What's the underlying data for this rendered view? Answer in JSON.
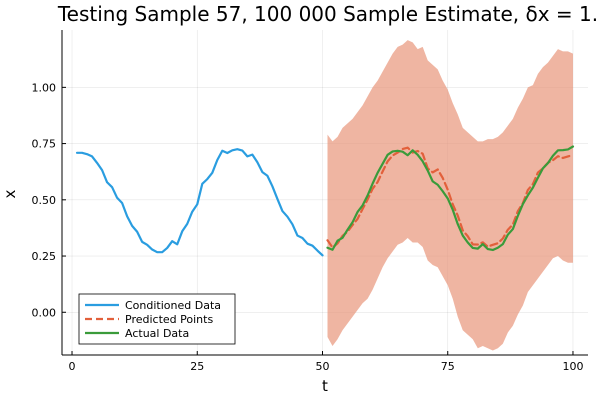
{
  "chart_data": {
    "type": "line",
    "title": "Testing Sample 57, 100 000 Sample Estimate, δx = 1.",
    "xlabel": "t",
    "ylabel": "x",
    "xlim": [
      -2,
      103
    ],
    "ylim": [
      -0.19,
      1.255
    ],
    "xticks": [
      0,
      25,
      50,
      75,
      100
    ],
    "yticks": [
      0.0,
      0.25,
      0.5,
      0.75,
      1.0
    ],
    "xtick_labels": [
      "0",
      "25",
      "50",
      "75",
      "100"
    ],
    "ytick_labels": [
      "0.00",
      "0.25",
      "0.50",
      "0.75",
      "1.00"
    ],
    "grid": true,
    "legend_position": "bottom-left",
    "series": [
      {
        "name": "Conditioned Data",
        "color": "#2a9de0",
        "style": "solid",
        "x": [
          1,
          2,
          3,
          4,
          5,
          6,
          7,
          8,
          9,
          10,
          11,
          12,
          13,
          14,
          15,
          16,
          17,
          18,
          19,
          20,
          21,
          22,
          23,
          24,
          25,
          26,
          27,
          28,
          29,
          30,
          31,
          32,
          33,
          34,
          35,
          36,
          37,
          38,
          39,
          40,
          41,
          42,
          43,
          44,
          45,
          46,
          47,
          48,
          49,
          50
        ],
        "y": [
          0.709,
          0.709,
          0.703,
          0.693,
          0.664,
          0.632,
          0.578,
          0.556,
          0.509,
          0.486,
          0.427,
          0.384,
          0.358,
          0.313,
          0.3,
          0.279,
          0.267,
          0.267,
          0.286,
          0.316,
          0.302,
          0.36,
          0.393,
          0.447,
          0.48,
          0.571,
          0.592,
          0.62,
          0.677,
          0.718,
          0.708,
          0.72,
          0.725,
          0.719,
          0.693,
          0.701,
          0.667,
          0.623,
          0.607,
          0.56,
          0.504,
          0.45,
          0.425,
          0.391,
          0.341,
          0.33,
          0.305,
          0.296,
          0.274,
          0.253
        ]
      },
      {
        "name": "Predicted Points",
        "color": "#e2603b",
        "style": "dashed",
        "x": [
          51,
          52,
          53,
          54,
          55,
          56,
          57,
          58,
          59,
          60,
          61,
          62,
          63,
          64,
          65,
          66,
          67,
          68,
          69,
          70,
          71,
          72,
          73,
          74,
          75,
          76,
          77,
          78,
          79,
          80,
          81,
          82,
          83,
          84,
          85,
          86,
          87,
          88,
          89,
          90,
          91,
          92,
          93,
          94,
          95,
          96,
          97,
          98,
          99,
          100
        ],
        "y": [
          0.32,
          0.288,
          0.306,
          0.34,
          0.358,
          0.388,
          0.415,
          0.459,
          0.501,
          0.549,
          0.579,
          0.626,
          0.671,
          0.697,
          0.71,
          0.726,
          0.732,
          0.71,
          0.717,
          0.705,
          0.64,
          0.622,
          0.635,
          0.597,
          0.545,
          0.48,
          0.43,
          0.364,
          0.338,
          0.302,
          0.301,
          0.311,
          0.292,
          0.3,
          0.307,
          0.328,
          0.367,
          0.39,
          0.45,
          0.485,
          0.544,
          0.57,
          0.621,
          0.64,
          0.665,
          0.676,
          0.694,
          0.686,
          0.693,
          0.699
        ]
      },
      {
        "name": "Actual Data",
        "color": "#3a9b3a",
        "style": "solid",
        "x": [
          51,
          52,
          53,
          54,
          55,
          56,
          57,
          58,
          59,
          60,
          61,
          62,
          63,
          64,
          65,
          66,
          67,
          68,
          69,
          70,
          71,
          72,
          73,
          74,
          75,
          76,
          77,
          78,
          79,
          80,
          81,
          82,
          83,
          84,
          85,
          86,
          87,
          88,
          89,
          90,
          91,
          92,
          93,
          94,
          95,
          96,
          97,
          98,
          99,
          100
        ],
        "y": [
          0.287,
          0.278,
          0.318,
          0.331,
          0.367,
          0.4,
          0.446,
          0.475,
          0.519,
          0.572,
          0.62,
          0.66,
          0.7,
          0.715,
          0.718,
          0.714,
          0.698,
          0.72,
          0.7,
          0.671,
          0.63,
          0.582,
          0.567,
          0.538,
          0.506,
          0.456,
          0.392,
          0.341,
          0.31,
          0.286,
          0.283,
          0.303,
          0.281,
          0.277,
          0.287,
          0.303,
          0.345,
          0.37,
          0.429,
          0.481,
          0.52,
          0.554,
          0.598,
          0.64,
          0.663,
          0.696,
          0.72,
          0.721,
          0.724,
          0.737
        ]
      }
    ],
    "band": {
      "color": "#e8967a",
      "x": [
        51,
        52,
        53,
        54,
        55,
        56,
        57,
        58,
        59,
        60,
        61,
        62,
        63,
        64,
        65,
        66,
        67,
        68,
        69,
        70,
        71,
        72,
        73,
        74,
        75,
        76,
        77,
        78,
        79,
        80,
        81,
        82,
        83,
        84,
        85,
        86,
        87,
        88,
        89,
        90,
        91,
        92,
        93,
        94,
        95,
        96,
        97,
        98,
        99,
        100
      ],
      "upper": [
        0.79,
        0.76,
        0.78,
        0.82,
        0.84,
        0.86,
        0.89,
        0.92,
        0.96,
        1.0,
        1.03,
        1.07,
        1.11,
        1.15,
        1.18,
        1.19,
        1.21,
        1.2,
        1.17,
        1.18,
        1.12,
        1.1,
        1.08,
        1.03,
        0.99,
        0.93,
        0.88,
        0.82,
        0.8,
        0.78,
        0.76,
        0.76,
        0.77,
        0.77,
        0.78,
        0.8,
        0.83,
        0.86,
        0.91,
        0.95,
        1.0,
        1.01,
        1.06,
        1.09,
        1.11,
        1.14,
        1.17,
        1.16,
        1.16,
        1.15
      ],
      "lower": [
        -0.11,
        -0.15,
        -0.12,
        -0.08,
        -0.05,
        -0.02,
        0.01,
        0.04,
        0.06,
        0.1,
        0.15,
        0.2,
        0.24,
        0.27,
        0.3,
        0.31,
        0.33,
        0.31,
        0.31,
        0.29,
        0.23,
        0.21,
        0.2,
        0.16,
        0.12,
        0.06,
        -0.02,
        -0.08,
        -0.1,
        -0.12,
        -0.16,
        -0.15,
        -0.16,
        -0.17,
        -0.16,
        -0.14,
        -0.09,
        -0.06,
        -0.01,
        0.03,
        0.09,
        0.12,
        0.15,
        0.18,
        0.21,
        0.24,
        0.25,
        0.23,
        0.22,
        0.22
      ]
    }
  }
}
